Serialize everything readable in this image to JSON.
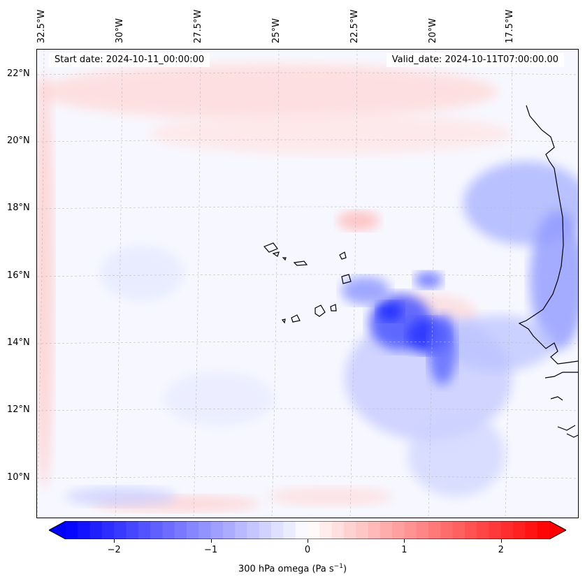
{
  "header": {
    "start_date": "Start date: 2024-10-11_00:00:00",
    "valid_date": "Valid_date: 2024-10-11T07:00:00.00"
  },
  "longitude_labels": [
    "32.5°W",
    "30°W",
    "27.5°W",
    "25°W",
    "22.5°W",
    "20°W",
    "17.5°W"
  ],
  "latitude_labels": [
    "22°N",
    "20°N",
    "18°N",
    "16°N",
    "14°N",
    "12°N",
    "10°N"
  ],
  "colorbar": {
    "label_prefix": "300 hPa omega (Pa s",
    "label_exp": "−1",
    "label_suffix": ")",
    "ticks": [
      "−2",
      "−1",
      "0",
      "1",
      "2"
    ],
    "tick_values": [
      -2,
      -1,
      0,
      1,
      2
    ],
    "range": [
      -2.5,
      2.5
    ],
    "negative_color": "#0000ff",
    "zero_color": "#ffffff",
    "positive_color": "#ff0000"
  },
  "chart_data": {
    "type": "heatmap",
    "variable": "300 hPa omega",
    "units": "Pa s^-1",
    "extent": {
      "lon": [
        -33,
        -15.5
      ],
      "lat": [
        8.8,
        22.8
      ]
    },
    "features": {
      "strong_ascent_region": "central Atlantic south-east of Cape Verde, near 14.5-16°N, 22-19.5°W",
      "coastline": "West African coast at the eastern edge"
    }
  }
}
